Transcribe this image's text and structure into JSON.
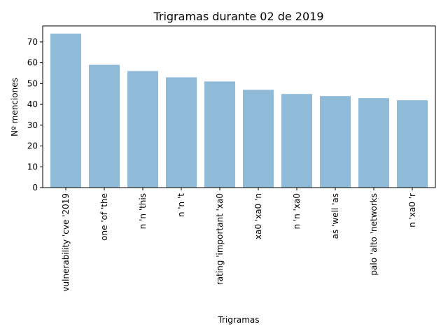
{
  "chart_data": {
    "type": "bar",
    "title": "Trigramas durante 02 de 2019",
    "xlabel": "Trigramas",
    "ylabel": "Nº menciones",
    "categories": [
      "vulnerability 'cve '2019",
      "one 'of 'the",
      "n 'n 'this",
      "n 'n 't",
      "rating 'important 'xa0",
      "xa0 'xa0 'n",
      "n 'n 'xa0",
      "as 'well 'as",
      "palo 'alto 'networks",
      "n 'xa0 'r"
    ],
    "values": [
      74,
      59,
      56,
      53,
      51,
      47,
      45,
      44,
      43,
      42
    ],
    "ylim": [
      0,
      77.7
    ],
    "yticks": [
      0,
      10,
      20,
      30,
      40,
      50,
      60,
      70
    ],
    "grid": false,
    "colors": {
      "bar": "#1f77b4"
    }
  }
}
